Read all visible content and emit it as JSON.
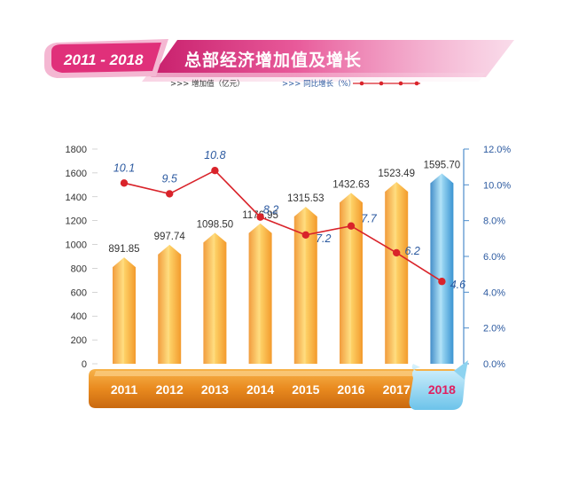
{
  "header": {
    "years_badge": "2011 - 2018",
    "title": "总部经济增加值及增长"
  },
  "legend": {
    "bars_label": ">>> 增加值（亿元）",
    "line_label": ">>> 同比增长（%）"
  },
  "colors": {
    "bar_orange_light": "#ffe07a",
    "bar_orange": "#f6a535",
    "bar_orange_dark": "#e4801c",
    "bar_blue_light": "#9fdcf5",
    "bar_blue": "#3e9bd6",
    "bar_blue_dark": "#1e6fb0",
    "line": "#d9232a",
    "growth_text": "#2c5aa0",
    "badge_pink": "#e0307a",
    "axis_right": "#2c5aa0"
  },
  "chart_data": {
    "type": "bar",
    "categories": [
      "2011",
      "2012",
      "2013",
      "2014",
      "2015",
      "2016",
      "2017",
      "2018"
    ],
    "series": [
      {
        "name": "增加值（亿元）",
        "type": "bar",
        "axis": "left",
        "values": [
          891.85,
          997.74,
          1098.5,
          1176.95,
          1315.53,
          1432.63,
          1523.49,
          1595.7
        ],
        "labels": [
          "891.85",
          "997.74",
          "1098.50",
          "1176.95",
          "1315.53",
          "1432.63",
          "1523.49",
          "1595.70"
        ]
      },
      {
        "name": "同比增长（%）",
        "type": "line",
        "axis": "right",
        "values": [
          10.1,
          9.5,
          10.8,
          8.2,
          7.2,
          7.7,
          6.2,
          4.6
        ],
        "labels": [
          "10.1",
          "9.5",
          "10.8",
          "8.2",
          "7.2",
          "7.7",
          "6.2",
          "4.6"
        ]
      }
    ],
    "ylim_left": [
      0,
      1800
    ],
    "yticks_left": [
      "0",
      "200",
      "400",
      "600",
      "800",
      "1000",
      "1200",
      "1400",
      "1600",
      "1800"
    ],
    "ylim_right": [
      0,
      12
    ],
    "yticks_right": [
      "0.0%",
      "2.0%",
      "4.0%",
      "6.0%",
      "8.0%",
      "10.0%",
      "12.0%"
    ],
    "highlight_category": "2018",
    "grid": false,
    "legend_position": "top-left"
  }
}
